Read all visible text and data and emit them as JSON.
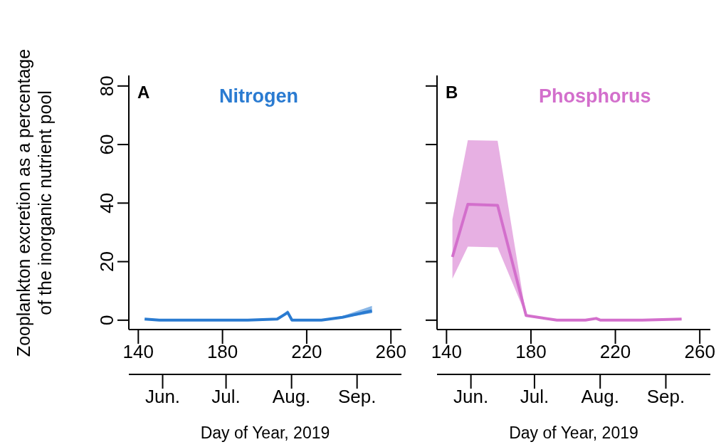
{
  "chart_data": [
    {
      "type": "line",
      "annotations": [
        "A"
      ],
      "ylabel": "Zooplankton excretion as a percentage\nof the inorganic nutrient pool",
      "x2label": "Day of Year, 2019",
      "xlim": [
        135.5,
        265
      ],
      "xticks": [
        140,
        180,
        220,
        260
      ],
      "x2lim": [
        "--05-16",
        "--09-22"
      ],
      "x2ticks": [
        {
          "value": "--06-01",
          "label": "Jun."
        },
        {
          "value": "--07-01",
          "label": "Jul."
        },
        {
          "value": "--08-01",
          "label": "Aug."
        },
        {
          "value": "--09-01",
          "label": "Sep."
        }
      ],
      "ylim": [
        -3.2,
        83.6
      ],
      "yticks": [
        0,
        20,
        40,
        60,
        80
      ],
      "marker": "none",
      "line_style": "solid",
      "series": [
        {
          "name": "Nitrogen",
          "color": "#2a7bd1",
          "x": [
            143,
            150,
            164,
            178,
            192,
            206,
            211,
            213,
            227,
            237,
            251
          ],
          "values": [
            0.4,
            0,
            0,
            0,
            0,
            0.4,
            2.6,
            0,
            0,
            1,
            3.2
          ],
          "lower": [
            0.4,
            0,
            0,
            0,
            0,
            0.4,
            2.2,
            0,
            0,
            0.8,
            2.4
          ],
          "upper": [
            0.4,
            0,
            0,
            0,
            0,
            0.4,
            3.4,
            0,
            0,
            1.4,
            4.9
          ]
        }
      ]
    },
    {
      "type": "line",
      "annotations": [
        "B"
      ],
      "x2label": "Day of Year, 2019",
      "xlim": [
        135.5,
        265
      ],
      "xticks": [
        140,
        180,
        220,
        260
      ],
      "x2lim": [
        "--05-16",
        "--09-22"
      ],
      "x2ticks": [
        {
          "value": "--06-01",
          "label": "Jun."
        },
        {
          "value": "--07-01",
          "label": "Jul."
        },
        {
          "value": "--08-01",
          "label": "Aug."
        },
        {
          "value": "--09-01",
          "label": "Sep."
        }
      ],
      "ylim": [
        -3.2,
        83.6
      ],
      "yticks": [
        0,
        20,
        40,
        60,
        80
      ],
      "tick_labels": "x",
      "marker": "none",
      "line_style": "solid",
      "series": [
        {
          "name": "Phosphorus",
          "color": "#d36fcc",
          "x": [
            142.8,
            150.1,
            164.2,
            177.7,
            192.3,
            205.8,
            210.9,
            213,
            232.8,
            251.4
          ],
          "values": [
            21.6,
            39.6,
            39.2,
            1.6,
            0,
            0,
            0.6,
            0,
            0,
            0.4
          ],
          "lower": [
            14.2,
            25.1,
            24.9,
            1.6,
            0,
            0,
            0.6,
            0,
            0,
            0.4
          ],
          "upper": [
            34.4,
            61.5,
            61.3,
            1.6,
            0,
            0,
            0.6,
            0,
            0,
            0.4
          ]
        }
      ]
    }
  ]
}
